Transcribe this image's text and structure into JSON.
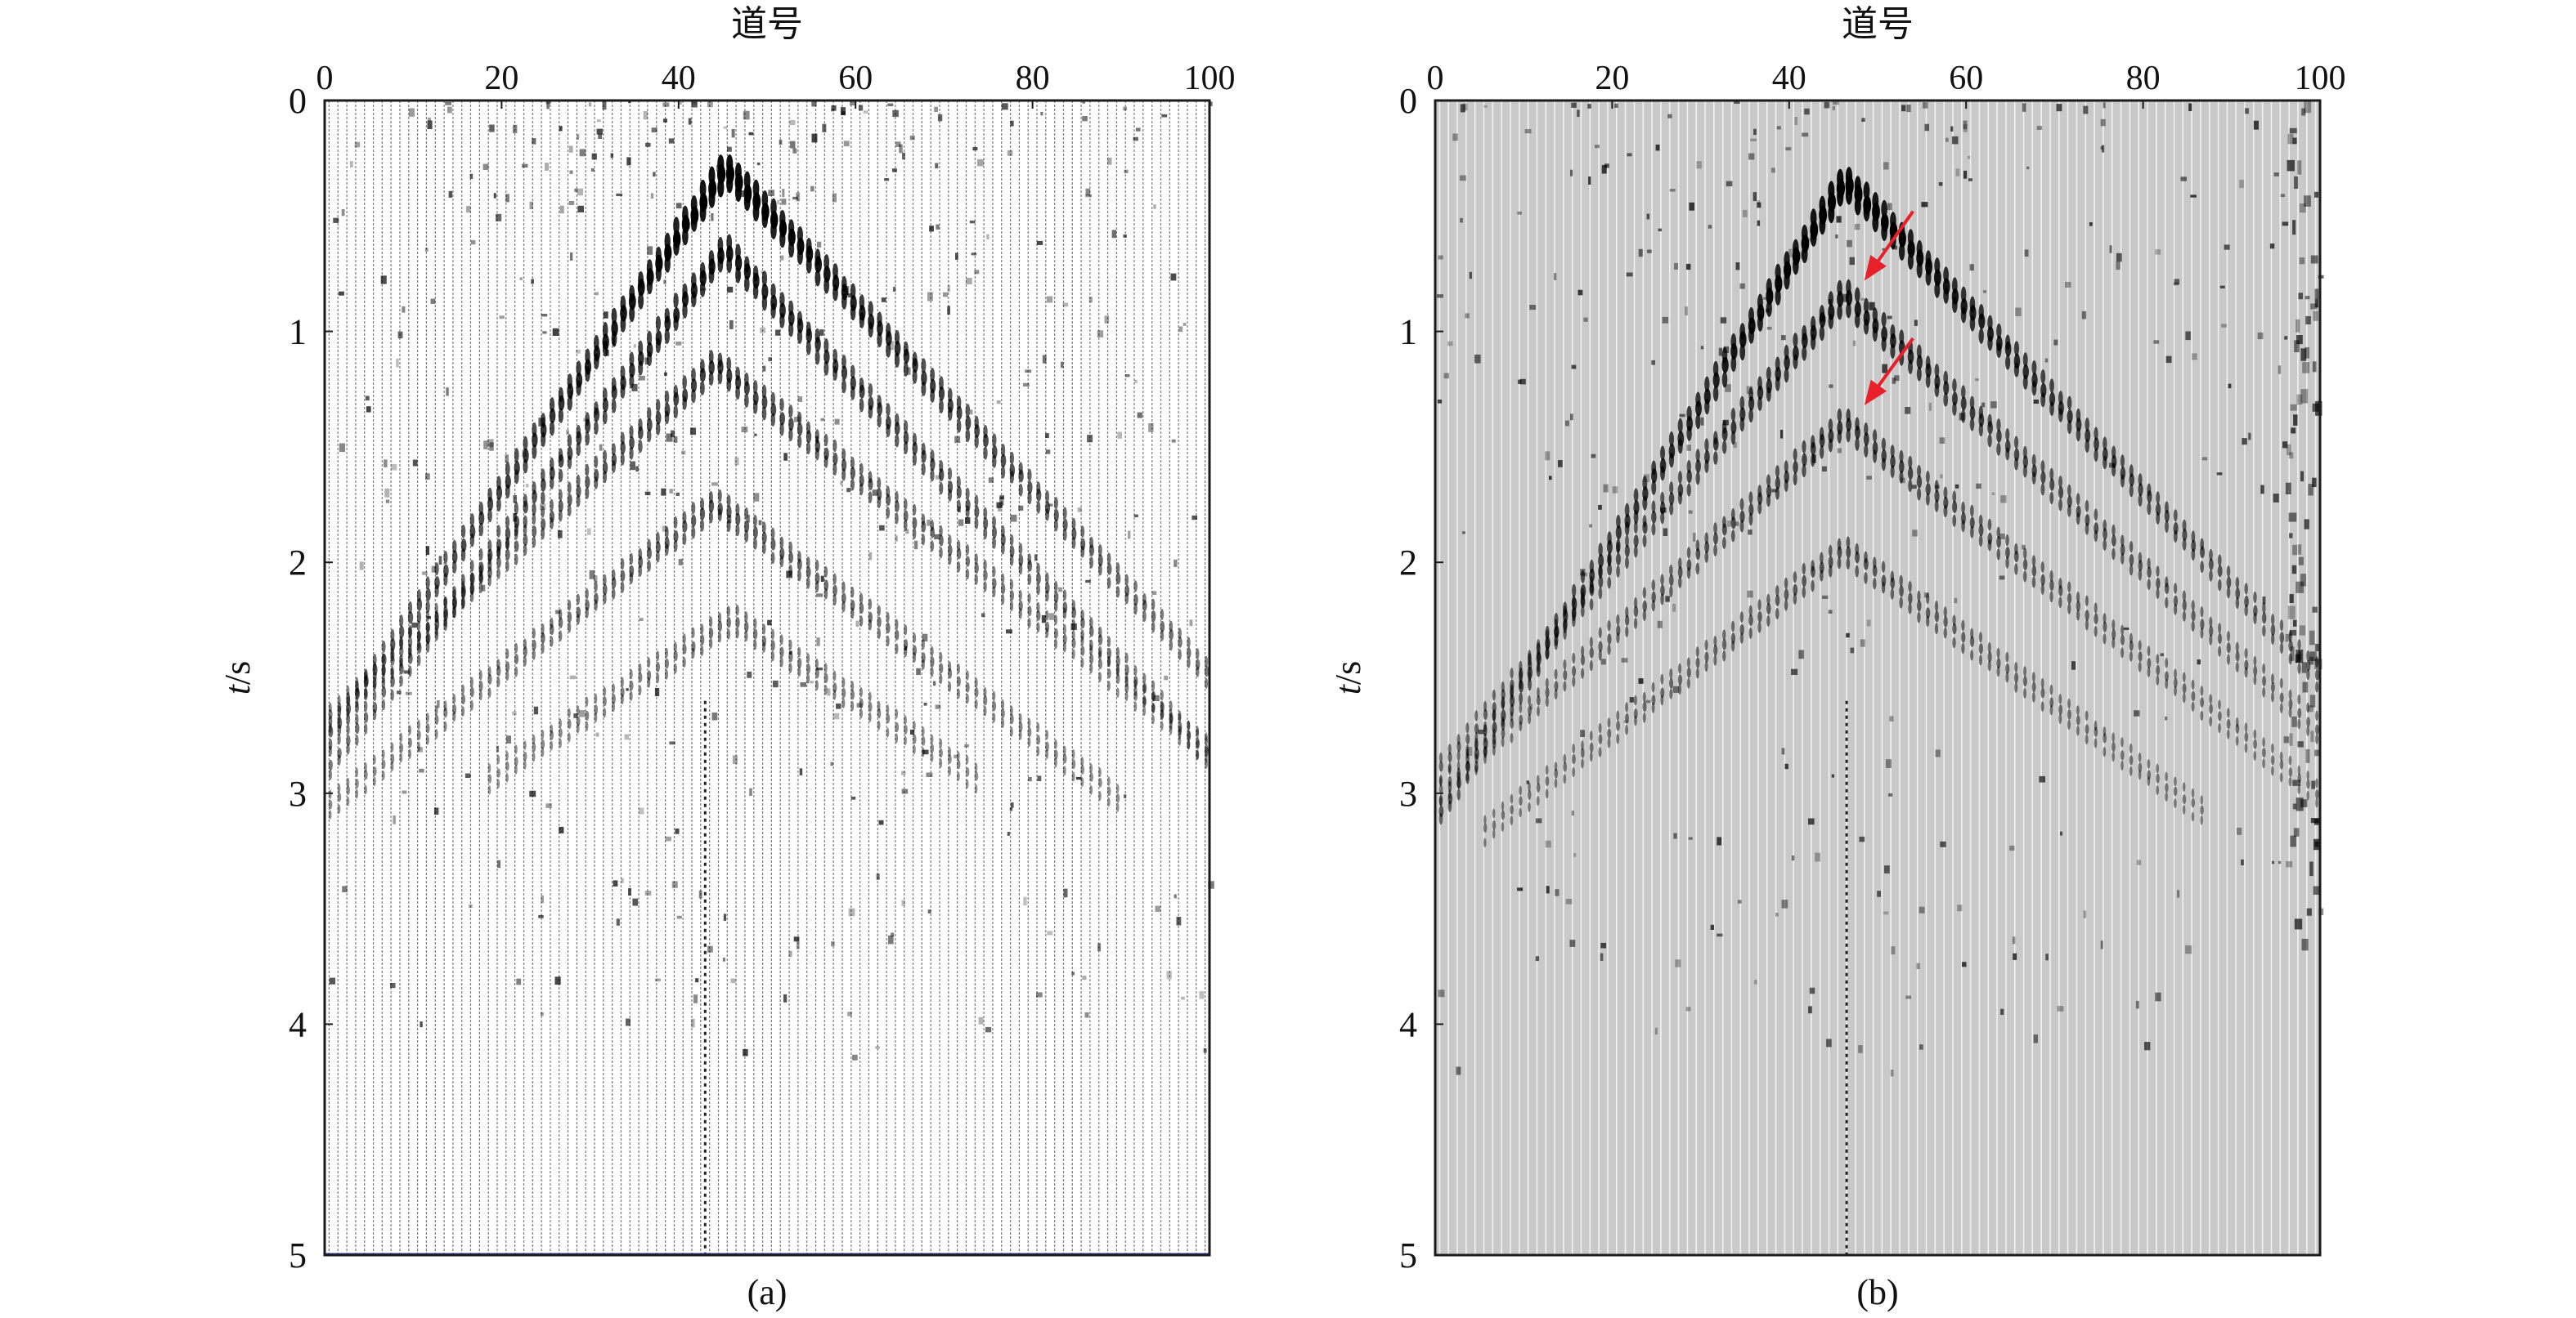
{
  "colors": {
    "frame": "#1a1a1a",
    "trace": "#3a3a3a",
    "panel_b_bg": "#c9c9c9",
    "arrow": "#e8202a",
    "bottom_edge_a": "#3040c0"
  },
  "chart_data": [
    {
      "type": "heatmap",
      "panel_label": "(a)",
      "xlabel": "道号",
      "ylabel_italic": "t",
      "ylabel_rest": "/s",
      "x_ticks": [
        0,
        20,
        40,
        60,
        80,
        100
      ],
      "y_ticks": [
        0,
        1,
        2,
        3,
        4,
        5
      ],
      "xlim": [
        0,
        100
      ],
      "ylim": [
        0,
        5
      ],
      "x_axis_position": "top",
      "background": "white",
      "traces": 100,
      "events": [
        {
          "apex_trace": 45,
          "apex_time": 0.25,
          "slope_left": 0.055,
          "slope_right": 0.04,
          "amplitude": 1.0
        },
        {
          "apex_trace": 45,
          "apex_time": 0.6,
          "slope_left": 0.05,
          "slope_right": 0.04,
          "amplitude": 0.75
        },
        {
          "apex_trace": 44,
          "apex_time": 1.1,
          "slope_left": 0.035,
          "slope_right": 0.03,
          "amplitude": 0.55
        },
        {
          "apex_trace": 44,
          "apex_time": 1.7,
          "slope_left": 0.03,
          "slope_right": 0.028,
          "amplitude": 0.4
        },
        {
          "apex_trace": 46,
          "apex_time": 2.2,
          "slope_left": 0.025,
          "slope_right": 0.025,
          "amplitude": 0.25
        }
      ],
      "annotations": []
    },
    {
      "type": "heatmap",
      "panel_label": "(b)",
      "xlabel": "道号",
      "ylabel_italic": "t",
      "ylabel_rest": "/s",
      "x_ticks": [
        0,
        20,
        40,
        60,
        80,
        100
      ],
      "y_ticks": [
        0,
        1,
        2,
        3,
        4,
        5
      ],
      "xlim": [
        0,
        100
      ],
      "ylim": [
        0,
        5
      ],
      "x_axis_position": "top",
      "background": "gray",
      "traces": 100,
      "events": [
        {
          "apex_trace": 46,
          "apex_time": 0.3,
          "slope_left": 0.06,
          "slope_right": 0.04,
          "amplitude": 1.0
        },
        {
          "apex_trace": 46,
          "apex_time": 0.8,
          "slope_left": 0.045,
          "slope_right": 0.035,
          "amplitude": 0.7
        },
        {
          "apex_trace": 46,
          "apex_time": 1.35,
          "slope_left": 0.035,
          "slope_right": 0.03,
          "amplitude": 0.5
        },
        {
          "apex_trace": 46,
          "apex_time": 1.9,
          "slope_left": 0.03,
          "slope_right": 0.028,
          "amplitude": 0.35
        }
      ],
      "annotations": [
        {
          "type": "arrow",
          "from_trace": 54,
          "from_time": 0.48,
          "to_trace": 48.5,
          "to_time": 0.78
        },
        {
          "type": "arrow",
          "from_trace": 54,
          "from_time": 1.03,
          "to_trace": 48.5,
          "to_time": 1.32
        }
      ]
    }
  ]
}
